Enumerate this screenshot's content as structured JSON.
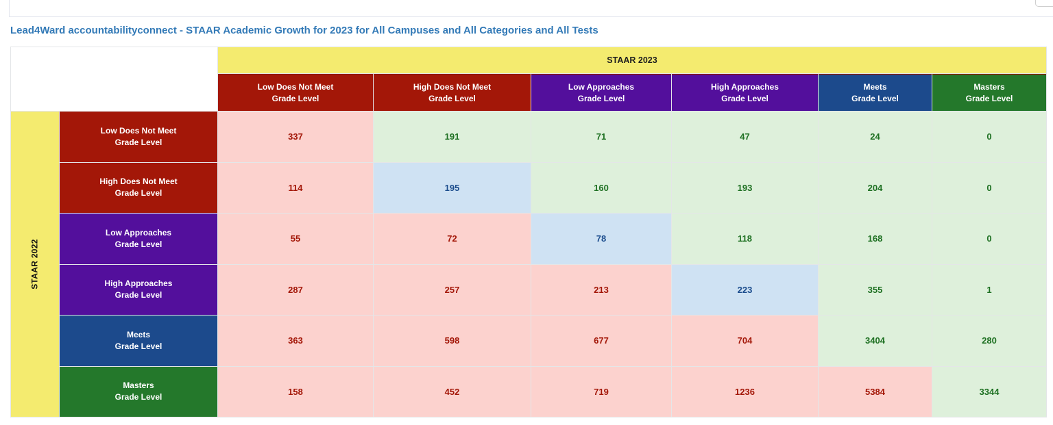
{
  "title": "Lead4Ward accountabilityconnect - STAAR Academic Growth for 2023 for All Campuses and All Categories and All Tests",
  "axes": {
    "column_axis": "STAAR 2023",
    "row_axis": "STAAR 2022",
    "axis_band_color": "#f4eb6f"
  },
  "levels": [
    {
      "title": "Low Does Not Meet",
      "subtitle": "Grade Level",
      "color": "#a31708"
    },
    {
      "title": "High Does Not Meet",
      "subtitle": "Grade Level",
      "color": "#a31708"
    },
    {
      "title": "Low Approaches",
      "subtitle": "Grade Level",
      "color": "#530f9c"
    },
    {
      "title": "High Approaches",
      "subtitle": "Grade Level",
      "color": "#530f9c"
    },
    {
      "title": "Meets",
      "subtitle": "Grade Level",
      "color": "#1c4a8c"
    },
    {
      "title": "Masters",
      "subtitle": "Grade Level",
      "color": "#24782b"
    }
  ],
  "state_colors": {
    "down": {
      "bg": "#fcd2ce",
      "fg": "#a31708"
    },
    "up": {
      "bg": "#def0db",
      "fg": "#1e7022"
    },
    "same": {
      "bg": "#cfe2f3",
      "fg": "#1c4d8d"
    }
  },
  "cells": [
    [
      {
        "v": "337",
        "s": "down"
      },
      {
        "v": "191",
        "s": "up"
      },
      {
        "v": "71",
        "s": "up"
      },
      {
        "v": "47",
        "s": "up"
      },
      {
        "v": "24",
        "s": "up"
      },
      {
        "v": "0",
        "s": "up"
      }
    ],
    [
      {
        "v": "114",
        "s": "down"
      },
      {
        "v": "195",
        "s": "same"
      },
      {
        "v": "160",
        "s": "up"
      },
      {
        "v": "193",
        "s": "up"
      },
      {
        "v": "204",
        "s": "up"
      },
      {
        "v": "0",
        "s": "up"
      }
    ],
    [
      {
        "v": "55",
        "s": "down"
      },
      {
        "v": "72",
        "s": "down"
      },
      {
        "v": "78",
        "s": "same"
      },
      {
        "v": "118",
        "s": "up"
      },
      {
        "v": "168",
        "s": "up"
      },
      {
        "v": "0",
        "s": "up"
      }
    ],
    [
      {
        "v": "287",
        "s": "down"
      },
      {
        "v": "257",
        "s": "down"
      },
      {
        "v": "213",
        "s": "down"
      },
      {
        "v": "223",
        "s": "same"
      },
      {
        "v": "355",
        "s": "up"
      },
      {
        "v": "1",
        "s": "up"
      }
    ],
    [
      {
        "v": "363",
        "s": "down"
      },
      {
        "v": "598",
        "s": "down"
      },
      {
        "v": "677",
        "s": "down"
      },
      {
        "v": "704",
        "s": "down"
      },
      {
        "v": "3404",
        "s": "up"
      },
      {
        "v": "280",
        "s": "up"
      }
    ],
    [
      {
        "v": "158",
        "s": "down"
      },
      {
        "v": "452",
        "s": "down"
      },
      {
        "v": "719",
        "s": "down"
      },
      {
        "v": "1236",
        "s": "down"
      },
      {
        "v": "5384",
        "s": "down"
      },
      {
        "v": "3344",
        "s": "up"
      }
    ]
  ]
}
